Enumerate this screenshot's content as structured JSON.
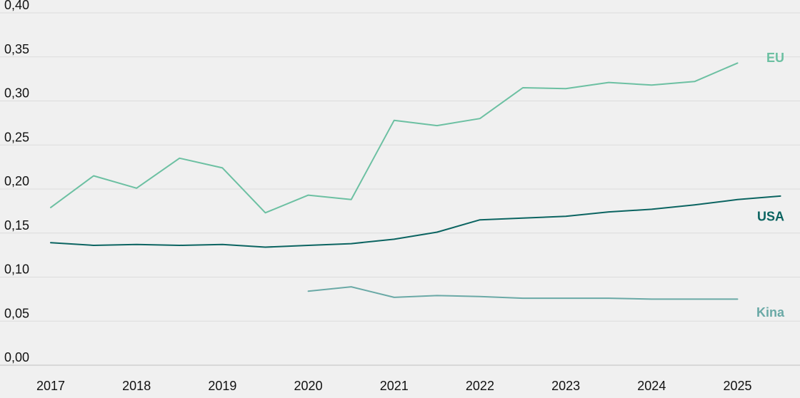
{
  "chart_data": {
    "type": "line",
    "title": "",
    "xlabel": "",
    "ylabel": "",
    "ylim": [
      0,
      0.4
    ],
    "xlim": [
      2017,
      2025.5
    ],
    "y_ticks": [
      "0,00",
      "0,05",
      "0,10",
      "0,15",
      "0,20",
      "0,25",
      "0,30",
      "0,35",
      "0,40"
    ],
    "x_ticks": [
      "2017",
      "2018",
      "2019",
      "2020",
      "2021",
      "2022",
      "2023",
      "2024",
      "2025"
    ],
    "grid": "horizontal",
    "legend": "inline labels at right end of lines",
    "series": [
      {
        "name": "EU",
        "color": "#6cc0a2",
        "x": [
          2017,
          2017.5,
          2018,
          2018.5,
          2019,
          2019.5,
          2020,
          2020.5,
          2021,
          2021.5,
          2022,
          2022.5,
          2023,
          2023.5,
          2024,
          2024.5,
          2025
        ],
        "values": [
          0.179,
          0.215,
          0.201,
          0.235,
          0.224,
          0.173,
          0.193,
          0.188,
          0.278,
          0.272,
          0.28,
          0.315,
          0.314,
          0.321,
          0.318,
          0.322,
          0.343
        ]
      },
      {
        "name": "USA",
        "color": "#0b6461",
        "x": [
          2017,
          2017.5,
          2018,
          2018.5,
          2019,
          2019.5,
          2020,
          2020.5,
          2021,
          2021.5,
          2022,
          2022.5,
          2023,
          2023.5,
          2024,
          2024.5,
          2025,
          2025.5
        ],
        "values": [
          0.139,
          0.136,
          0.137,
          0.136,
          0.137,
          0.134,
          0.136,
          0.138,
          0.143,
          0.151,
          0.165,
          0.167,
          0.169,
          0.174,
          0.177,
          0.182,
          0.188,
          0.192
        ]
      },
      {
        "name": "Kina",
        "color": "#6aa9a6",
        "x": [
          2020,
          2020.5,
          2021,
          2021.5,
          2022,
          2022.5,
          2023,
          2023.5,
          2024,
          2024.5,
          2025
        ],
        "values": [
          0.084,
          0.089,
          0.077,
          0.079,
          0.078,
          0.076,
          0.076,
          0.076,
          0.075,
          0.075,
          0.075
        ]
      }
    ]
  }
}
